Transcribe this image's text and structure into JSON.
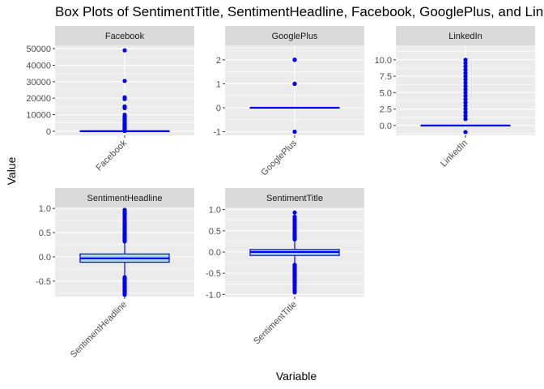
{
  "chart_data": {
    "type": "boxplot",
    "title": "Box Plots of SentimentTitle, SentimentHeadline, Facebook, GooglePlus, and LinkedIn",
    "xlabel": "Variable",
    "ylabel": "Value",
    "facet_scales": "free",
    "colors": {
      "box_outline": "#0000ff",
      "box_fill": "#add8e6",
      "outlier": "#0000ff",
      "panel_bg": "#ebebeb",
      "strip_bg": "#d9d9d9",
      "grid": "#ffffff"
    },
    "panels": [
      {
        "name": "Facebook",
        "category": "Facebook",
        "ylim": [
          -2500,
          52000
        ],
        "yticks": [
          0,
          10000,
          20000,
          30000,
          40000,
          50000
        ],
        "ytick_labels": [
          "0",
          "10000",
          "20000",
          "30000",
          "40000",
          "50000"
        ],
        "stats": {
          "whisker_low": 0,
          "q1": 0,
          "median": 0,
          "q3": 6,
          "whisker_high": 15
        },
        "outliers": [
          49000,
          30500,
          20500,
          19500,
          15000,
          14000,
          10000,
          9000,
          8000,
          7000,
          6500,
          6000,
          5500,
          5000,
          4600,
          4300,
          4000,
          3700,
          3400,
          3100,
          2800,
          2500,
          2200,
          1900,
          1600,
          1400,
          1200,
          1000,
          800,
          600,
          400,
          250,
          120
        ]
      },
      {
        "name": "GooglePlus",
        "category": "GooglePlus",
        "ylim": [
          -1.15,
          2.6
        ],
        "yticks": [
          -1,
          0,
          1,
          2
        ],
        "ytick_labels": [
          "-1",
          "0",
          "1",
          "2"
        ],
        "stats": {
          "whisker_low": 0,
          "q1": 0,
          "median": 0,
          "q3": 0,
          "whisker_high": 0
        },
        "outliers": [
          2,
          2,
          1,
          1,
          -1,
          -1
        ]
      },
      {
        "name": "LinkedIn",
        "category": "LinkedIn",
        "ylim": [
          -1.5,
          12.2
        ],
        "yticks": [
          0,
          2.5,
          5,
          7.5,
          10
        ],
        "ytick_labels": [
          "0.0",
          "2.5",
          "5.0",
          "7.5",
          "10.0"
        ],
        "stats": {
          "whisker_low": 0,
          "q1": 0,
          "median": 0,
          "q3": 0,
          "whisker_high": 0
        },
        "outliers": [
          10,
          9.5,
          9,
          8.5,
          8,
          7.5,
          7,
          6.5,
          6,
          5.5,
          5,
          4.5,
          4,
          3.5,
          3,
          2.5,
          2,
          1.5,
          1,
          -1
        ]
      },
      {
        "name": "SentimentHeadline",
        "category": "SentimentHeadline",
        "ylim": [
          -0.82,
          1.02
        ],
        "yticks": [
          -0.5,
          0,
          0.5,
          1
        ],
        "ytick_labels": [
          "-0.5",
          "0.0",
          "0.5",
          "1.0"
        ],
        "stats": {
          "whisker_low": -0.4,
          "q1": -0.11,
          "median": -0.03,
          "q3": 0.06,
          "whisker_high": 0.3
        },
        "outliers": [
          0.97,
          0.93,
          0.9,
          0.86,
          0.82,
          0.78,
          0.75,
          0.71,
          0.68,
          0.65,
          0.62,
          0.59,
          0.56,
          0.53,
          0.5,
          0.48,
          0.46,
          0.44,
          0.42,
          0.4,
          0.38,
          0.36,
          0.34,
          0.32,
          -0.42,
          -0.44,
          -0.46,
          -0.48,
          -0.5,
          -0.52,
          -0.54,
          -0.56,
          -0.58,
          -0.6,
          -0.62,
          -0.64,
          -0.66,
          -0.68,
          -0.7,
          -0.72,
          -0.74,
          -0.76,
          -0.78
        ]
      },
      {
        "name": "SentimentTitle",
        "category": "SentimentTitle",
        "ylim": [
          -1.05,
          1.05
        ],
        "yticks": [
          -1,
          -0.5,
          0,
          0.5,
          1
        ],
        "ytick_labels": [
          "-1.0",
          "-0.5",
          "0.0",
          "0.5",
          "1.0"
        ],
        "stats": {
          "whisker_low": -0.28,
          "q1": -0.08,
          "median": 0,
          "q3": 0.06,
          "whisker_high": 0.26
        },
        "outliers": [
          0.93,
          0.83,
          0.78,
          0.74,
          0.7,
          0.66,
          0.62,
          0.58,
          0.54,
          0.5,
          0.46,
          0.42,
          0.38,
          0.34,
          0.3,
          -0.3,
          -0.33,
          -0.36,
          -0.39,
          -0.42,
          -0.45,
          -0.48,
          -0.51,
          -0.54,
          -0.57,
          -0.6,
          -0.63,
          -0.66,
          -0.69,
          -0.72,
          -0.75,
          -0.8,
          -0.85,
          -0.9,
          -0.95
        ]
      }
    ]
  }
}
